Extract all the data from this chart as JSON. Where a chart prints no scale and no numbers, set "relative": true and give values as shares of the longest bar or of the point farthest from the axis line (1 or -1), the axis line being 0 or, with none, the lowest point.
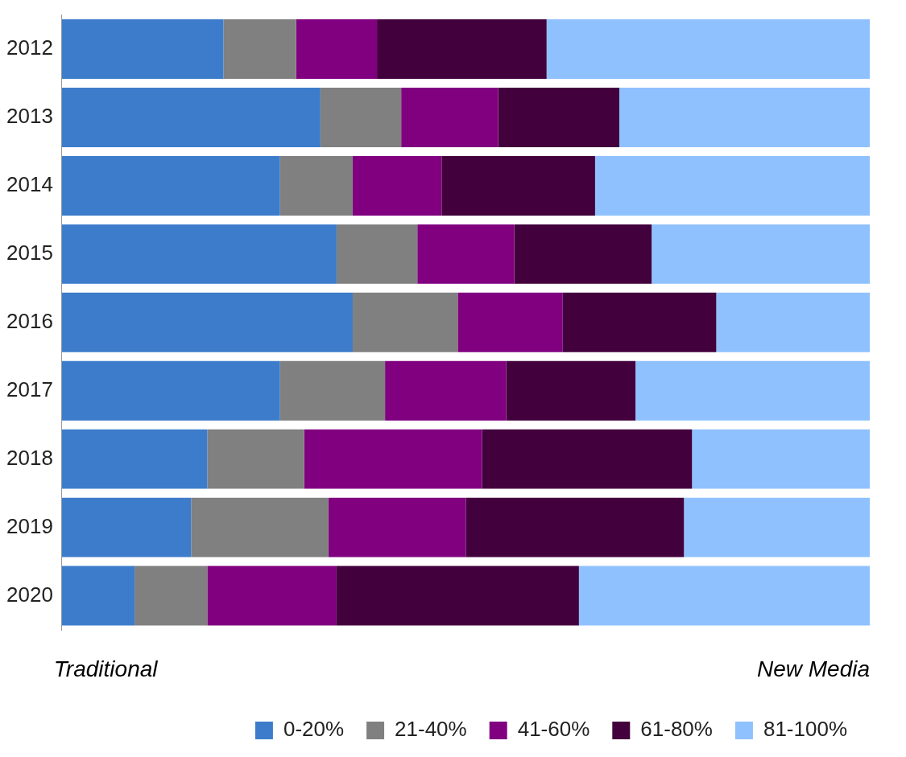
{
  "chart_data": {
    "type": "bar",
    "orientation": "horizontal",
    "stacked": true,
    "relative": true,
    "legend": "bottom",
    "categories": [
      "2012",
      "2013",
      "2014",
      "2015",
      "2016",
      "2017",
      "2018",
      "2019",
      "2020"
    ],
    "series": [
      {
        "name": "0-20%",
        "color": "#3d7ccb",
        "values": [
          0.2,
          0.32,
          0.27,
          0.34,
          0.36,
          0.27,
          0.18,
          0.16,
          0.09
        ]
      },
      {
        "name": "21-40%",
        "color": "#808080",
        "values": [
          0.09,
          0.1,
          0.09,
          0.1,
          0.13,
          0.13,
          0.12,
          0.17,
          0.09
        ]
      },
      {
        "name": "41-60%",
        "color": "#800080",
        "values": [
          0.1,
          0.12,
          0.11,
          0.12,
          0.13,
          0.15,
          0.22,
          0.17,
          0.16
        ]
      },
      {
        "name": "61-80%",
        "color": "#42003d",
        "values": [
          0.21,
          0.15,
          0.19,
          0.17,
          0.19,
          0.16,
          0.26,
          0.27,
          0.3
        ]
      },
      {
        "name": "81-100%",
        "color": "#8fc1ff",
        "values": [
          0.4,
          0.31,
          0.34,
          0.27,
          0.19,
          0.29,
          0.22,
          0.23,
          0.36
        ]
      }
    ],
    "annotations": [
      "Traditional",
      "New Media"
    ]
  }
}
